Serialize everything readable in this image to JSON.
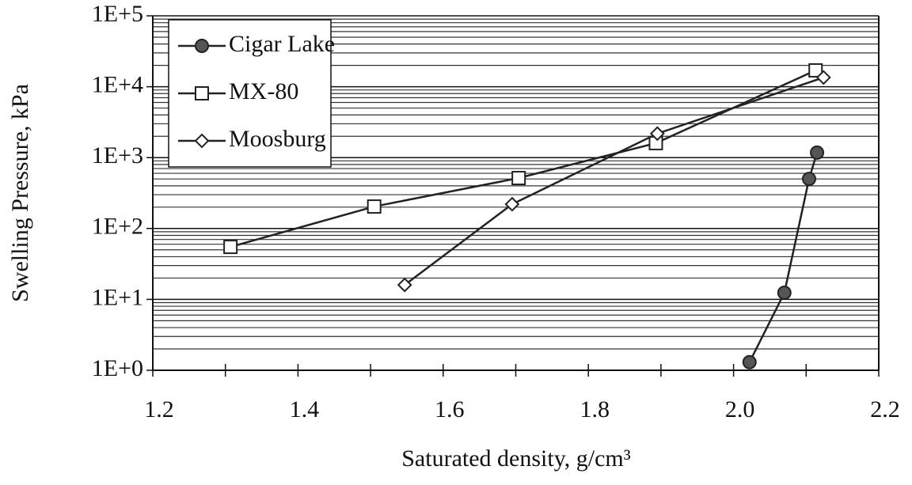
{
  "chart_data": {
    "type": "line",
    "xlabel": "Saturated density, g/cm³",
    "ylabel": "Swelling Pressure, kPa",
    "xlim": [
      1.2,
      2.2
    ],
    "xticks": [
      1.2,
      1.4,
      1.6,
      1.8,
      {
        "value": 2,
        "label": "2.0"
      },
      2.2
    ],
    "ylim": [
      1,
      100000
    ],
    "ylog": true,
    "grid": true,
    "minor_grid": true,
    "yticks": [
      {
        "value": 1,
        "label": "1E+0"
      },
      {
        "value": 10,
        "label": "1E+1"
      },
      {
        "value": 100,
        "label": "1E+2"
      },
      {
        "value": 1000,
        "label": "1E+3"
      },
      {
        "value": 10000,
        "label": "1E+4"
      },
      {
        "value": 100000,
        "label": "1E+5"
      }
    ],
    "legend": "upper left",
    "series": [
      {
        "name": "Cigar Lake",
        "color": "#222222",
        "marker": "circle",
        "x": [
          2.022,
          2.07,
          2.104,
          2.115
        ],
        "values": [
          1.3,
          12.4,
          500,
          1175
        ]
      },
      {
        "name": "MX-80",
        "color": "#222222",
        "marker": "square",
        "x": [
          1.307,
          1.505,
          1.704,
          1.893,
          2.113
        ],
        "values": [
          55,
          204,
          515,
          1600,
          17000
        ]
      },
      {
        "name": "Moosburg",
        "color": "#222222",
        "marker": "diamond",
        "x": [
          1.547,
          1.695,
          1.895,
          2.124
        ],
        "values": [
          16,
          220,
          2180,
          13500
        ]
      }
    ]
  }
}
